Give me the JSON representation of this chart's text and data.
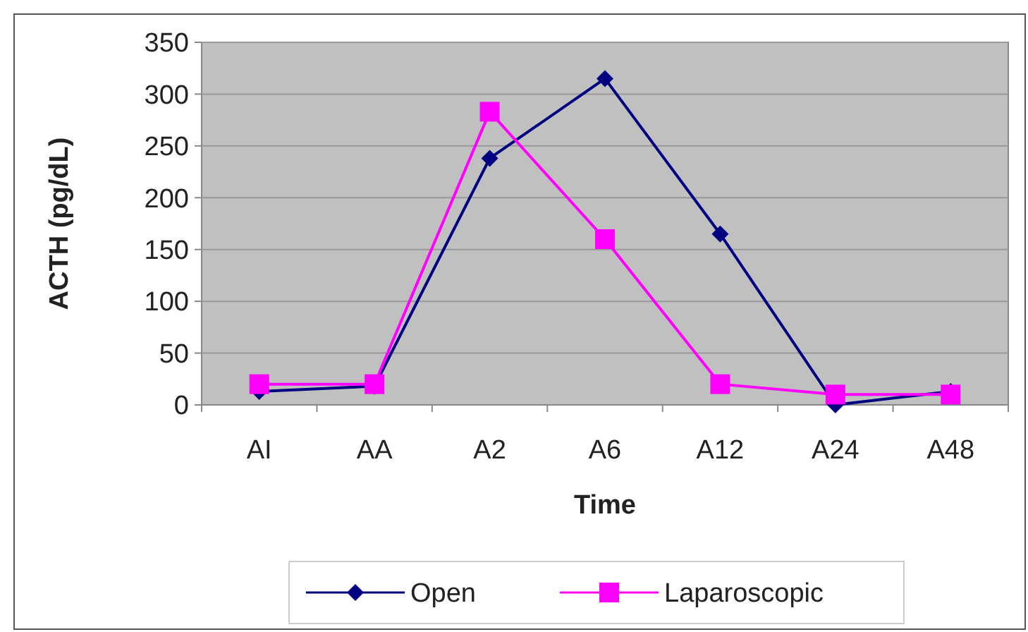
{
  "chart_data": {
    "type": "line",
    "xlabel": "Time",
    "ylabel": "ACTH (pg/dL)",
    "categories": [
      "AI",
      "AA",
      "A2",
      "A6",
      "A12",
      "A24",
      "A48"
    ],
    "ylim": [
      0,
      350
    ],
    "yticks": [
      0,
      50,
      100,
      150,
      200,
      250,
      300,
      350
    ],
    "grid": "y",
    "legend": "bottom",
    "series": [
      {
        "name": "Open",
        "color": "#000080",
        "marker": "diamond",
        "values": [
          13,
          18,
          238,
          315,
          165,
          0,
          13
        ]
      },
      {
        "name": "Laparoscopic",
        "color": "#ff00ff",
        "marker": "square",
        "values": [
          20,
          20,
          283,
          160,
          20,
          10,
          10
        ]
      }
    ]
  }
}
